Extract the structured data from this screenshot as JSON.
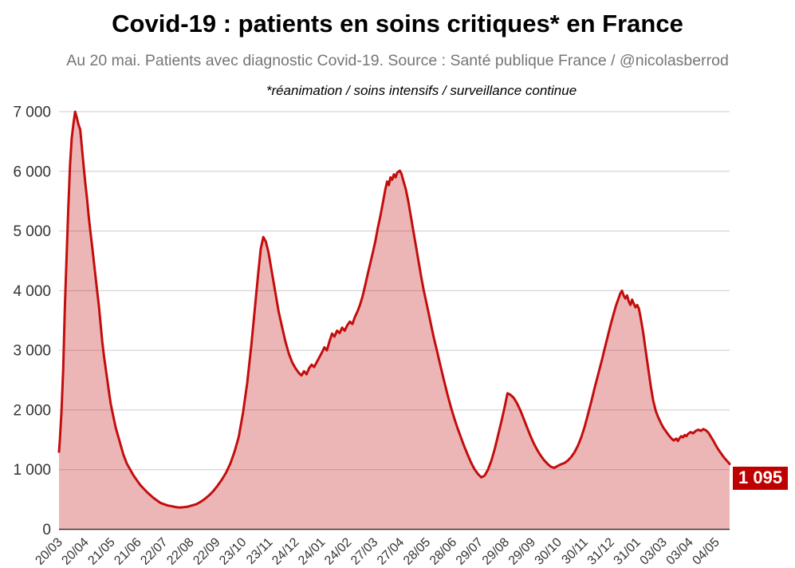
{
  "header": {
    "title": "Covid-19 : patients en soins critiques* en France",
    "subtitle": "Au 20 mai. Patients avec diagnostic Covid-19. Source : Santé publique France / @nicolasberrod",
    "note": "*réanimation / soins intensifs / surveillance continue"
  },
  "badge": {
    "label": "1 095"
  },
  "colors": {
    "line": "#c30d0d",
    "fill": "rgba(195,13,13,0.30)",
    "grid": "#cccccc",
    "axis": "#333333",
    "tick_text": "#333333",
    "badge_bg": "#c00000",
    "badge_text": "#ffffff",
    "title_text": "#000000",
    "subtitle_text": "#757575"
  },
  "chart_data": {
    "type": "area",
    "title": "Covid-19 : patients en soins critiques* en France",
    "xlabel": "",
    "ylabel": "",
    "ylim": [
      0,
      7000
    ],
    "grid": true,
    "legend": false,
    "x_domain": [
      "20/03/2020",
      "20/05/2022"
    ],
    "y_ticks": [
      {
        "value": 0,
        "label": "0"
      },
      {
        "value": 1000,
        "label": "1 000"
      },
      {
        "value": 2000,
        "label": "2 000"
      },
      {
        "value": 3000,
        "label": "3 000"
      },
      {
        "value": 4000,
        "label": "4 000"
      },
      {
        "value": 5000,
        "label": "5 000"
      },
      {
        "value": 6000,
        "label": "6 000"
      },
      {
        "value": 7000,
        "label": "7 000"
      }
    ],
    "x_ticks": [
      {
        "date": "20/03/2020",
        "label": "20/03"
      },
      {
        "date": "20/04/2020",
        "label": "20/04"
      },
      {
        "date": "21/05/2020",
        "label": "21/05"
      },
      {
        "date": "21/06/2020",
        "label": "21/06"
      },
      {
        "date": "22/07/2020",
        "label": "22/07"
      },
      {
        "date": "22/08/2020",
        "label": "22/08"
      },
      {
        "date": "22/09/2020",
        "label": "22/09"
      },
      {
        "date": "23/10/2020",
        "label": "23/10"
      },
      {
        "date": "23/11/2020",
        "label": "23/11"
      },
      {
        "date": "24/12/2020",
        "label": "24/12"
      },
      {
        "date": "24/01/2021",
        "label": "24/01"
      },
      {
        "date": "24/02/2021",
        "label": "24/02"
      },
      {
        "date": "27/03/2021",
        "label": "27/03"
      },
      {
        "date": "27/04/2021",
        "label": "27/04"
      },
      {
        "date": "28/05/2021",
        "label": "28/05"
      },
      {
        "date": "28/06/2021",
        "label": "28/06"
      },
      {
        "date": "29/07/2021",
        "label": "29/07"
      },
      {
        "date": "29/08/2021",
        "label": "29/08"
      },
      {
        "date": "29/09/2021",
        "label": "29/09"
      },
      {
        "date": "30/10/2021",
        "label": "30/10"
      },
      {
        "date": "30/11/2021",
        "label": "30/11"
      },
      {
        "date": "31/12/2021",
        "label": "31/12"
      },
      {
        "date": "31/01/2022",
        "label": "31/01"
      },
      {
        "date": "03/03/2022",
        "label": "03/03"
      },
      {
        "date": "03/04/2022",
        "label": "03/04"
      },
      {
        "date": "04/05/2022",
        "label": "04/05"
      }
    ],
    "last_point": {
      "date": "20/05/2022",
      "value": 1095,
      "label": "1 095"
    },
    "points": [
      [
        "20/03/2020",
        1300
      ],
      [
        "21/03/2020",
        1500
      ],
      [
        "23/03/2020",
        2000
      ],
      [
        "25/03/2020",
        2700
      ],
      [
        "27/03/2020",
        3750
      ],
      [
        "29/03/2020",
        4600
      ],
      [
        "31/03/2020",
        5400
      ],
      [
        "02/04/2020",
        6100
      ],
      [
        "04/04/2020",
        6550
      ],
      [
        "06/04/2020",
        6800
      ],
      [
        "08/04/2020",
        7000
      ],
      [
        "10/04/2020",
        6900
      ],
      [
        "12/04/2020",
        6780
      ],
      [
        "14/04/2020",
        6700
      ],
      [
        "16/04/2020",
        6400
      ],
      [
        "18/04/2020",
        6100
      ],
      [
        "20/04/2020",
        5800
      ],
      [
        "22/04/2020",
        5550
      ],
      [
        "24/04/2020",
        5250
      ],
      [
        "26/04/2020",
        5000
      ],
      [
        "28/04/2020",
        4750
      ],
      [
        "30/04/2020",
        4500
      ],
      [
        "02/05/2020",
        4250
      ],
      [
        "04/05/2020",
        4000
      ],
      [
        "06/05/2020",
        3750
      ],
      [
        "08/05/2020",
        3450
      ],
      [
        "10/05/2020",
        3150
      ],
      [
        "12/05/2020",
        2900
      ],
      [
        "14/05/2020",
        2700
      ],
      [
        "16/05/2020",
        2500
      ],
      [
        "18/05/2020",
        2300
      ],
      [
        "20/05/2020",
        2100
      ],
      [
        "23/05/2020",
        1900
      ],
      [
        "26/05/2020",
        1700
      ],
      [
        "29/05/2020",
        1550
      ],
      [
        "01/06/2020",
        1400
      ],
      [
        "04/06/2020",
        1250
      ],
      [
        "08/06/2020",
        1100
      ],
      [
        "12/06/2020",
        1000
      ],
      [
        "16/06/2020",
        900
      ],
      [
        "20/06/2020",
        820
      ],
      [
        "24/06/2020",
        740
      ],
      [
        "28/06/2020",
        680
      ],
      [
        "02/07/2020",
        620
      ],
      [
        "06/07/2020",
        570
      ],
      [
        "10/07/2020",
        520
      ],
      [
        "14/07/2020",
        480
      ],
      [
        "18/07/2020",
        440
      ],
      [
        "22/07/2020",
        420
      ],
      [
        "26/07/2020",
        400
      ],
      [
        "30/07/2020",
        390
      ],
      [
        "04/08/2020",
        375
      ],
      [
        "09/08/2020",
        365
      ],
      [
        "14/08/2020",
        370
      ],
      [
        "19/08/2020",
        380
      ],
      [
        "24/08/2020",
        400
      ],
      [
        "29/08/2020",
        420
      ],
      [
        "03/09/2020",
        460
      ],
      [
        "08/09/2020",
        510
      ],
      [
        "13/09/2020",
        570
      ],
      [
        "18/09/2020",
        640
      ],
      [
        "23/09/2020",
        730
      ],
      [
        "28/09/2020",
        830
      ],
      [
        "03/10/2020",
        950
      ],
      [
        "08/10/2020",
        1100
      ],
      [
        "13/10/2020",
        1300
      ],
      [
        "18/10/2020",
        1550
      ],
      [
        "23/10/2020",
        1950
      ],
      [
        "28/10/2020",
        2450
      ],
      [
        "02/11/2020",
        3100
      ],
      [
        "06/11/2020",
        3700
      ],
      [
        "10/11/2020",
        4300
      ],
      [
        "13/11/2020",
        4700
      ],
      [
        "16/11/2020",
        4900
      ],
      [
        "19/11/2020",
        4820
      ],
      [
        "22/11/2020",
        4650
      ],
      [
        "25/11/2020",
        4400
      ],
      [
        "28/11/2020",
        4150
      ],
      [
        "01/12/2020",
        3900
      ],
      [
        "04/12/2020",
        3650
      ],
      [
        "08/12/2020",
        3400
      ],
      [
        "12/12/2020",
        3150
      ],
      [
        "16/12/2020",
        2950
      ],
      [
        "20/12/2020",
        2800
      ],
      [
        "24/12/2020",
        2700
      ],
      [
        "28/12/2020",
        2620
      ],
      [
        "31/12/2020",
        2580
      ],
      [
        "03/01/2021",
        2650
      ],
      [
        "06/01/2021",
        2600
      ],
      [
        "09/01/2021",
        2700
      ],
      [
        "12/01/2021",
        2760
      ],
      [
        "15/01/2021",
        2720
      ],
      [
        "18/01/2021",
        2800
      ],
      [
        "21/01/2021",
        2880
      ],
      [
        "24/01/2021",
        2960
      ],
      [
        "27/01/2021",
        3050
      ],
      [
        "30/01/2021",
        3000
      ],
      [
        "02/02/2021",
        3150
      ],
      [
        "05/02/2021",
        3280
      ],
      [
        "08/02/2021",
        3230
      ],
      [
        "11/02/2021",
        3330
      ],
      [
        "14/02/2021",
        3290
      ],
      [
        "17/02/2021",
        3380
      ],
      [
        "20/02/2021",
        3330
      ],
      [
        "23/02/2021",
        3420
      ],
      [
        "26/02/2021",
        3480
      ],
      [
        "01/03/2021",
        3440
      ],
      [
        "04/03/2021",
        3560
      ],
      [
        "07/03/2021",
        3650
      ],
      [
        "10/03/2021",
        3760
      ],
      [
        "13/03/2021",
        3900
      ],
      [
        "16/03/2021",
        4080
      ],
      [
        "19/03/2021",
        4270
      ],
      [
        "22/03/2021",
        4450
      ],
      [
        "25/03/2021",
        4630
      ],
      [
        "28/03/2021",
        4820
      ],
      [
        "31/03/2021",
        5050
      ],
      [
        "03/04/2021",
        5250
      ],
      [
        "06/04/2021",
        5470
      ],
      [
        "09/04/2021",
        5700
      ],
      [
        "11/04/2021",
        5830
      ],
      [
        "13/04/2021",
        5770
      ],
      [
        "15/04/2021",
        5900
      ],
      [
        "17/04/2021",
        5860
      ],
      [
        "19/04/2021",
        5950
      ],
      [
        "21/04/2021",
        5900
      ],
      [
        "23/04/2021",
        5980
      ],
      [
        "26/04/2021",
        6010
      ],
      [
        "28/04/2021",
        5960
      ],
      [
        "30/04/2021",
        5850
      ],
      [
        "03/05/2021",
        5700
      ],
      [
        "06/05/2021",
        5500
      ],
      [
        "09/05/2021",
        5250
      ],
      [
        "12/05/2021",
        5000
      ],
      [
        "15/05/2021",
        4750
      ],
      [
        "18/05/2021",
        4500
      ],
      [
        "21/05/2021",
        4250
      ],
      [
        "24/05/2021",
        4020
      ],
      [
        "27/05/2021",
        3820
      ],
      [
        "30/05/2021",
        3620
      ],
      [
        "02/06/2021",
        3420
      ],
      [
        "05/06/2021",
        3220
      ],
      [
        "09/06/2021",
        2980
      ],
      [
        "13/06/2021",
        2740
      ],
      [
        "17/06/2021",
        2500
      ],
      [
        "21/06/2021",
        2270
      ],
      [
        "25/06/2021",
        2060
      ],
      [
        "29/06/2021",
        1870
      ],
      [
        "03/07/2021",
        1700
      ],
      [
        "07/07/2021",
        1540
      ],
      [
        "11/07/2021",
        1390
      ],
      [
        "15/07/2021",
        1250
      ],
      [
        "19/07/2021",
        1120
      ],
      [
        "23/07/2021",
        1010
      ],
      [
        "27/07/2021",
        930
      ],
      [
        "31/07/2021",
        870
      ],
      [
        "04/08/2021",
        900
      ],
      [
        "08/08/2021",
        1000
      ],
      [
        "12/08/2021",
        1150
      ],
      [
        "16/08/2021",
        1350
      ],
      [
        "20/08/2021",
        1580
      ],
      [
        "24/08/2021",
        1820
      ],
      [
        "28/08/2021",
        2070
      ],
      [
        "31/08/2021",
        2280
      ],
      [
        "03/09/2021",
        2260
      ],
      [
        "07/09/2021",
        2210
      ],
      [
        "11/09/2021",
        2120
      ],
      [
        "15/09/2021",
        2000
      ],
      [
        "19/09/2021",
        1860
      ],
      [
        "23/09/2021",
        1710
      ],
      [
        "27/09/2021",
        1570
      ],
      [
        "01/10/2021",
        1440
      ],
      [
        "05/10/2021",
        1330
      ],
      [
        "09/10/2021",
        1240
      ],
      [
        "13/10/2021",
        1160
      ],
      [
        "17/10/2021",
        1100
      ],
      [
        "21/10/2021",
        1050
      ],
      [
        "25/10/2021",
        1030
      ],
      [
        "29/10/2021",
        1060
      ],
      [
        "02/11/2021",
        1090
      ],
      [
        "06/11/2021",
        1110
      ],
      [
        "10/11/2021",
        1150
      ],
      [
        "14/11/2021",
        1210
      ],
      [
        "18/11/2021",
        1290
      ],
      [
        "22/11/2021",
        1400
      ],
      [
        "26/11/2021",
        1540
      ],
      [
        "30/11/2021",
        1720
      ],
      [
        "04/12/2021",
        1930
      ],
      [
        "08/12/2021",
        2150
      ],
      [
        "12/12/2021",
        2380
      ],
      [
        "16/12/2021",
        2600
      ],
      [
        "20/12/2021",
        2820
      ],
      [
        "24/12/2021",
        3050
      ],
      [
        "28/12/2021",
        3280
      ],
      [
        "31/12/2021",
        3450
      ],
      [
        "03/01/2022",
        3600
      ],
      [
        "06/01/2022",
        3750
      ],
      [
        "09/01/2022",
        3870
      ],
      [
        "11/01/2022",
        3950
      ],
      [
        "13/01/2022",
        4000
      ],
      [
        "15/01/2022",
        3920
      ],
      [
        "17/01/2022",
        3870
      ],
      [
        "19/01/2022",
        3920
      ],
      [
        "21/01/2022",
        3820
      ],
      [
        "23/01/2022",
        3760
      ],
      [
        "25/01/2022",
        3850
      ],
      [
        "27/01/2022",
        3780
      ],
      [
        "29/01/2022",
        3720
      ],
      [
        "31/01/2022",
        3760
      ],
      [
        "02/02/2022",
        3700
      ],
      [
        "04/02/2022",
        3550
      ],
      [
        "07/02/2022",
        3300
      ],
      [
        "10/02/2022",
        3000
      ],
      [
        "13/02/2022",
        2700
      ],
      [
        "16/02/2022",
        2400
      ],
      [
        "19/02/2022",
        2150
      ],
      [
        "22/02/2022",
        1980
      ],
      [
        "25/02/2022",
        1870
      ],
      [
        "28/02/2022",
        1780
      ],
      [
        "03/03/2022",
        1700
      ],
      [
        "06/03/2022",
        1640
      ],
      [
        "09/03/2022",
        1580
      ],
      [
        "12/03/2022",
        1530
      ],
      [
        "15/03/2022",
        1490
      ],
      [
        "18/03/2022",
        1520
      ],
      [
        "20/03/2022",
        1480
      ],
      [
        "22/03/2022",
        1530
      ],
      [
        "24/03/2022",
        1560
      ],
      [
        "26/03/2022",
        1540
      ],
      [
        "28/03/2022",
        1580
      ],
      [
        "30/03/2022",
        1560
      ],
      [
        "01/04/2022",
        1600
      ],
      [
        "04/04/2022",
        1630
      ],
      [
        "07/04/2022",
        1610
      ],
      [
        "10/04/2022",
        1650
      ],
      [
        "13/04/2022",
        1670
      ],
      [
        "16/04/2022",
        1650
      ],
      [
        "19/04/2022",
        1680
      ],
      [
        "22/04/2022",
        1660
      ],
      [
        "25/04/2022",
        1620
      ],
      [
        "28/04/2022",
        1550
      ],
      [
        "01/05/2022",
        1480
      ],
      [
        "04/05/2022",
        1400
      ],
      [
        "07/05/2022",
        1330
      ],
      [
        "10/05/2022",
        1270
      ],
      [
        "13/05/2022",
        1210
      ],
      [
        "16/05/2022",
        1160
      ],
      [
        "18/05/2022",
        1130
      ],
      [
        "20/05/2022",
        1095
      ]
    ]
  }
}
